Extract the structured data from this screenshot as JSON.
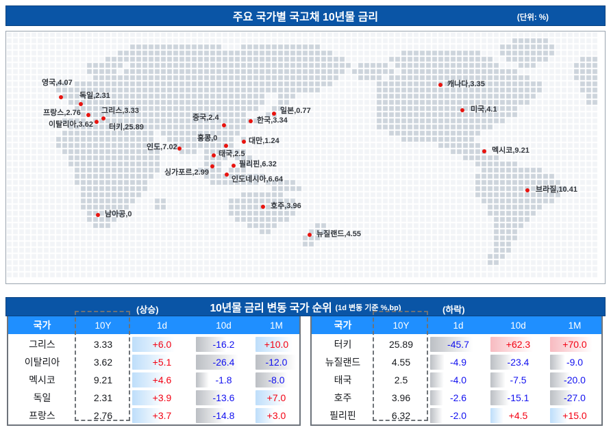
{
  "header": {
    "title": "주요 국가별 국고채 10년물 금리",
    "unit": "(단위: %)"
  },
  "map": {
    "markers": [
      {
        "name": "영국",
        "value": "4.07",
        "dot": [
          88,
          141
        ],
        "label": [
          60,
          115
        ]
      },
      {
        "name": "독일",
        "value": "2.31",
        "dot": [
          117,
          151
        ],
        "label": [
          115,
          134
        ]
      },
      {
        "name": "프랑스",
        "value": "2.76",
        "dot": [
          128,
          167
        ],
        "label": [
          62,
          159
        ]
      },
      {
        "name": "그리스",
        "value": "3.33",
        "dot": [
          150,
          172
        ],
        "label": [
          147,
          156
        ]
      },
      {
        "name": "이탈리아",
        "value": "3.62",
        "dot": [
          140,
          177
        ],
        "label": [
          70,
          176
        ]
      },
      {
        "name": "터키",
        "value": "25.89",
        "dot": null,
        "label": [
          158,
          180
        ]
      },
      {
        "name": "중국",
        "value": "2.4",
        "dot": [
          326,
          182
        ],
        "label": [
          280,
          166
        ]
      },
      {
        "name": "일본",
        "value": "0.77",
        "dot": [
          399,
          165
        ],
        "label": [
          408,
          156
        ]
      },
      {
        "name": "한국",
        "value": "3.34",
        "dot": [
          365,
          176
        ],
        "label": [
          374,
          170
        ]
      },
      {
        "name": "홍콩",
        "value": "0",
        "dot": [
          329,
          212
        ],
        "label": [
          287,
          196
        ]
      },
      {
        "name": "대만",
        "value": "1.24",
        "dot": [
          355,
          206
        ],
        "label": [
          362,
          200
        ]
      },
      {
        "name": "인도",
        "value": "7.02",
        "dot": [
          261,
          216
        ],
        "label": [
          213,
          209
        ]
      },
      {
        "name": "태국",
        "value": "2.5",
        "dot": [
          311,
          226
        ],
        "label": [
          318,
          219
        ]
      },
      {
        "name": "필리핀",
        "value": "6.32",
        "dot": [
          340,
          241
        ],
        "label": [
          348,
          234
        ]
      },
      {
        "name": "싱가포르",
        "value": "2.99",
        "dot": [
          309,
          242
        ],
        "label": [
          239,
          246
        ]
      },
      {
        "name": "인도네시아",
        "value": "6.64",
        "dot": [
          330,
          254
        ],
        "label": [
          337,
          256
        ]
      },
      {
        "name": "호주",
        "value": "3.96",
        "dot": [
          383,
          301
        ],
        "label": [
          394,
          295
        ]
      },
      {
        "name": "뉴질랜드",
        "value": "4.55",
        "dot": [
          451,
          342
        ],
        "label": [
          461,
          336
        ]
      },
      {
        "name": "남아공",
        "value": "0",
        "dot": [
          142,
          313
        ],
        "label": [
          152,
          307
        ]
      },
      {
        "name": "캐나다",
        "value": "3.35",
        "dot": [
          642,
          123
        ],
        "label": [
          652,
          117
        ]
      },
      {
        "name": "미국",
        "value": "4.1",
        "dot": [
          674,
          160
        ],
        "label": [
          686,
          154
        ]
      },
      {
        "name": "멕시코",
        "value": "9.21",
        "dot": [
          706,
          220
        ],
        "label": [
          717,
          214
        ]
      },
      {
        "name": "브라질",
        "value": "10.41",
        "dot": [
          769,
          277
        ],
        "label": [
          781,
          271
        ]
      }
    ]
  },
  "rank": {
    "up_tag": "(상승)",
    "down_tag": "(하락)",
    "title": "10년물 금리 변동 국가 순위",
    "subtitle": "(1d 변동 기준 %,bp)",
    "columns": [
      "국가",
      "10Y",
      "1d",
      "10d",
      "1M"
    ],
    "up": [
      [
        "그리스",
        "3.33",
        "+6.0",
        "-16.2",
        "+10.0"
      ],
      [
        "이탈리아",
        "3.62",
        "+5.1",
        "-26.4",
        "-12.0"
      ],
      [
        "멕시코",
        "9.21",
        "+4.6",
        "-1.8",
        "-8.0"
      ],
      [
        "독일",
        "2.31",
        "+3.9",
        "-13.6",
        "+7.0"
      ],
      [
        "프랑스",
        "2.76",
        "+3.7",
        "-14.8",
        "+3.0"
      ]
    ],
    "down": [
      [
        "터키",
        "25.89",
        "-45.7",
        "+62.3",
        "+70.0"
      ],
      [
        "뉴질랜드",
        "4.55",
        "-4.9",
        "-23.4",
        "-9.0"
      ],
      [
        "태국",
        "2.5",
        "-4.0",
        "-7.5",
        "-20.0"
      ],
      [
        "호주",
        "3.96",
        "-2.6",
        "-15.1",
        "-27.0"
      ],
      [
        "필리핀",
        "6.32",
        "-2.0",
        "+4.5",
        "+15.0"
      ]
    ]
  },
  "colors": {
    "dark_blue": "#0a55a6",
    "bright_blue": "#1f8fff",
    "positive_red": "#f30012",
    "negative_blue": "#1110ef",
    "marker_red": "#e8140f",
    "land_gray": "#cdd4dc"
  },
  "chart_data": [
    {
      "type": "scatter",
      "title": "주요 국가별 국고채 10년물 금리",
      "unit": "%",
      "note": "dotted world map with red country markers",
      "categories": [
        "영국",
        "독일",
        "프랑스",
        "그리스",
        "이탈리아",
        "터키",
        "중국",
        "일본",
        "한국",
        "홍콩",
        "대만",
        "인도",
        "태국",
        "필리핀",
        "싱가포르",
        "인도네시아",
        "호주",
        "뉴질랜드",
        "남아공",
        "캐나다",
        "미국",
        "멕시코",
        "브라질"
      ],
      "values": [
        4.07,
        2.31,
        2.76,
        3.33,
        3.62,
        25.89,
        2.4,
        0.77,
        3.34,
        0,
        1.24,
        7.02,
        2.5,
        6.32,
        2.99,
        6.64,
        3.96,
        4.55,
        0,
        3.35,
        4.1,
        9.21,
        10.41
      ]
    },
    {
      "type": "table",
      "title": "10년물 금리 변동 국가 순위 (1d 변동 기준 %,bp) — (상승)",
      "columns": [
        "국가",
        "10Y",
        "1d",
        "10d",
        "1M"
      ],
      "rows": [
        [
          "그리스",
          3.33,
          6.0,
          -16.2,
          10.0
        ],
        [
          "이탈리아",
          3.62,
          5.1,
          -26.4,
          -12.0
        ],
        [
          "멕시코",
          9.21,
          4.6,
          -1.8,
          -8.0
        ],
        [
          "독일",
          2.31,
          3.9,
          -13.6,
          7.0
        ],
        [
          "프랑스",
          2.76,
          3.7,
          -14.8,
          3.0
        ]
      ]
    },
    {
      "type": "table",
      "title": "10년물 금리 변동 국가 순위 (1d 변동 기준 %,bp) — (하락)",
      "columns": [
        "국가",
        "10Y",
        "1d",
        "10d",
        "1M"
      ],
      "rows": [
        [
          "터키",
          25.89,
          -45.7,
          62.3,
          70.0
        ],
        [
          "뉴질랜드",
          4.55,
          -4.9,
          -23.4,
          -9.0
        ],
        [
          "태국",
          2.5,
          -4.0,
          -7.5,
          -20.0
        ],
        [
          "호주",
          3.96,
          -2.6,
          -15.1,
          -27.0
        ],
        [
          "필리핀",
          6.32,
          -2.0,
          4.5,
          15.0
        ]
      ]
    }
  ]
}
